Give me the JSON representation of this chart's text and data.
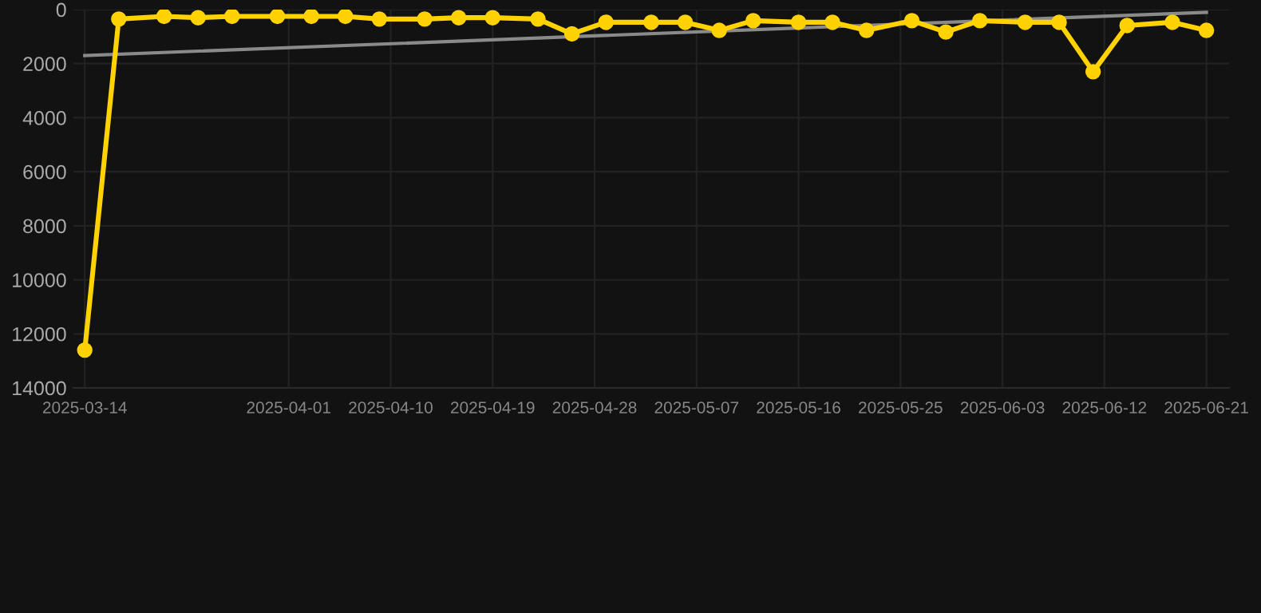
{
  "chart_data": {
    "type": "line",
    "ylim": [
      14000,
      0
    ],
    "yticks": [
      0,
      2000,
      4000,
      6000,
      8000,
      10000,
      12000,
      14000
    ],
    "xlim": [
      "2025-03-13",
      "2025-06-23"
    ],
    "xticks": [
      "2025-03-14",
      "2025-04-01",
      "2025-04-10",
      "2025-04-19",
      "2025-04-28",
      "2025-05-07",
      "2025-05-16",
      "2025-05-25",
      "2025-06-03",
      "2025-06-12",
      "2025-06-21"
    ],
    "grid": true,
    "series": [
      {
        "color": "#ffd200",
        "marker": "circle",
        "x": [
          "2025-03-14",
          "2025-03-17",
          "2025-03-21",
          "2025-03-24",
          "2025-03-27",
          "2025-03-31",
          "2025-04-03",
          "2025-04-06",
          "2025-04-09",
          "2025-04-13",
          "2025-04-16",
          "2025-04-19",
          "2025-04-23",
          "2025-04-26",
          "2025-04-29",
          "2025-05-03",
          "2025-05-06",
          "2025-05-09",
          "2025-05-12",
          "2025-05-16",
          "2025-05-19",
          "2025-05-22",
          "2025-05-26",
          "2025-05-29",
          "2025-06-01",
          "2025-06-05",
          "2025-06-08",
          "2025-06-11",
          "2025-06-14",
          "2025-06-18",
          "2025-06-21"
        ],
        "values": [
          12600,
          350,
          250,
          300,
          250,
          250,
          250,
          250,
          350,
          350,
          300,
          300,
          350,
          900,
          470,
          470,
          470,
          770,
          410,
          470,
          470,
          770,
          410,
          830,
          410,
          470,
          470,
          2300,
          590,
          470,
          770
        ]
      },
      {
        "color": "#8a8a8a",
        "marker": "none",
        "x": [
          "2025-03-14",
          "2025-06-21"
        ],
        "values": [
          1700,
          100
        ]
      }
    ]
  }
}
